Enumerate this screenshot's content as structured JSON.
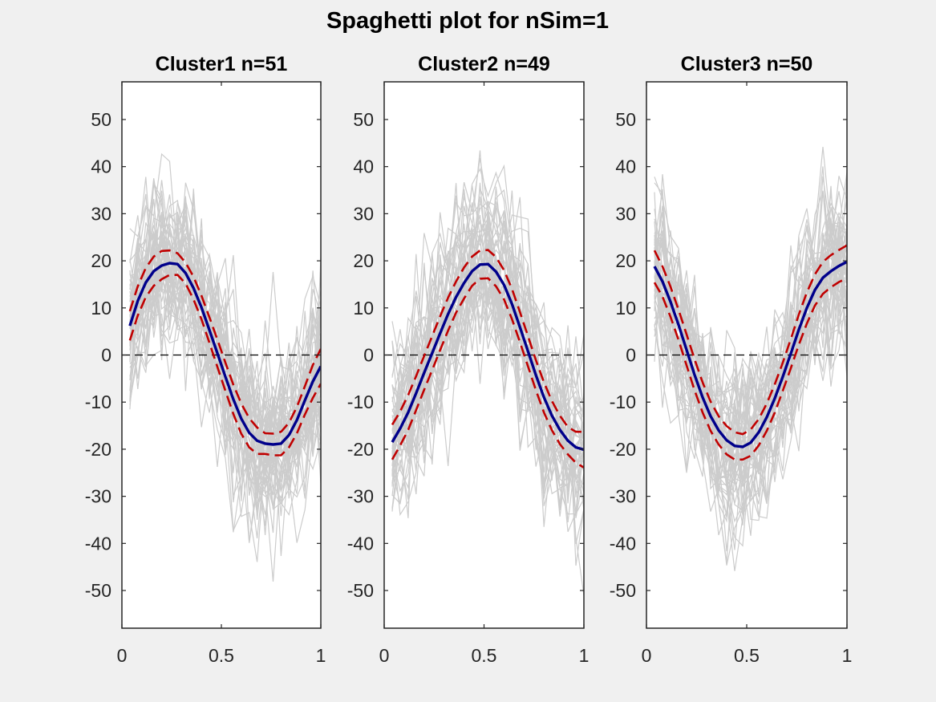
{
  "figure": {
    "title": "Spaghetti plot for nSim=1"
  },
  "chart_data": [
    {
      "type": "line",
      "title": "Cluster1 n=51",
      "xlim": [
        0,
        1
      ],
      "ylim": [
        -58,
        58
      ],
      "xticks": [
        0,
        0.5,
        1
      ],
      "xtick_labels": [
        "0",
        "0.5",
        "1"
      ],
      "yticks": [
        50,
        40,
        30,
        20,
        10,
        0,
        -10,
        -20,
        -30,
        -40,
        -50
      ],
      "ytick_labels": [
        "50",
        "40",
        "30",
        "20",
        "10",
        "0",
        "-10",
        "-20",
        "-30",
        "-40",
        "-50"
      ],
      "grid": false,
      "legend": "none",
      "x": [
        0.04,
        0.08,
        0.12,
        0.16,
        0.2,
        0.24,
        0.28,
        0.32,
        0.36,
        0.4,
        0.44,
        0.48,
        0.52,
        0.56,
        0.6,
        0.64,
        0.68,
        0.72,
        0.76,
        0.8,
        0.84,
        0.88,
        0.92,
        0.96,
        1.0
      ],
      "mean": [
        6.2,
        11.5,
        15.4,
        17.8,
        19.0,
        19.5,
        19.3,
        17.4,
        14.2,
        10.1,
        5.3,
        0.4,
        -4.6,
        -9.4,
        -13.5,
        -16.5,
        -18.2,
        -18.8,
        -19.0,
        -18.8,
        -17.0,
        -13.8,
        -9.6,
        -5.6,
        -2.4
      ],
      "band_upper": [
        9.3,
        14.6,
        18.5,
        20.9,
        22.1,
        22.2,
        21.6,
        19.6,
        16.6,
        12.6,
        8.0,
        3.3,
        -1.6,
        -6.3,
        -10.3,
        -13.4,
        -15.4,
        -16.6,
        -16.7,
        -16.3,
        -14.4,
        -11.0,
        -6.6,
        -2.1,
        1.3
      ],
      "band_lower": [
        3.1,
        8.4,
        12.3,
        14.7,
        16.1,
        17.0,
        17.0,
        15.2,
        11.8,
        7.6,
        2.6,
        -2.5,
        -7.6,
        -12.5,
        -16.7,
        -19.6,
        -21.0,
        -21.0,
        -21.3,
        -21.3,
        -19.6,
        -16.6,
        -12.6,
        -9.1,
        -6.1
      ],
      "zero_line": 0,
      "spaghetti": {
        "count": 51,
        "noise_sd": 8,
        "seed": 11
      },
      "colors": {
        "mean": "#00008b",
        "band": "#c00000",
        "spaghetti": "#cccccc",
        "zero_line": "#000000"
      }
    },
    {
      "type": "line",
      "title": "Cluster2 n=49",
      "xlim": [
        0,
        1
      ],
      "ylim": [
        -58,
        58
      ],
      "xticks": [
        0,
        0.5,
        1
      ],
      "xtick_labels": [
        "0",
        "0.5",
        "1"
      ],
      "yticks": [
        50,
        40,
        30,
        20,
        10,
        0,
        -10,
        -20,
        -30,
        -40,
        -50
      ],
      "ytick_labels": [
        "50",
        "40",
        "30",
        "20",
        "10",
        "0",
        "-10",
        "-20",
        "-30",
        "-40",
        "-50"
      ],
      "grid": false,
      "legend": "none",
      "x": [
        0.04,
        0.08,
        0.12,
        0.16,
        0.2,
        0.24,
        0.28,
        0.32,
        0.36,
        0.4,
        0.44,
        0.48,
        0.52,
        0.56,
        0.6,
        0.64,
        0.68,
        0.72,
        0.76,
        0.8,
        0.84,
        0.88,
        0.92,
        0.96,
        1.0
      ],
      "mean": [
        -18.5,
        -15.6,
        -12.2,
        -8.1,
        -3.8,
        0.4,
        4.6,
        8.7,
        12.3,
        15.3,
        17.8,
        19.2,
        19.3,
        17.7,
        14.9,
        10.8,
        5.9,
        0.8,
        -4.3,
        -9.0,
        -12.9,
        -15.9,
        -18.2,
        -19.6,
        -20.1
      ],
      "band_upper": [
        -14.8,
        -12.0,
        -8.5,
        -4.5,
        -0.2,
        4.0,
        8.2,
        12.2,
        15.6,
        18.6,
        20.9,
        22.2,
        22.3,
        20.8,
        18.0,
        14.0,
        9.1,
        4.0,
        -1.1,
        -5.8,
        -9.8,
        -12.9,
        -15.3,
        -16.3,
        -16.3
      ],
      "band_lower": [
        -22.2,
        -19.2,
        -15.9,
        -11.7,
        -7.4,
        -3.2,
        1.0,
        5.2,
        9.0,
        12.0,
        14.7,
        16.2,
        16.3,
        14.6,
        11.8,
        7.6,
        2.7,
        -2.4,
        -7.5,
        -12.2,
        -16.0,
        -18.9,
        -21.1,
        -22.9,
        -23.9
      ],
      "zero_line": 0,
      "spaghetti": {
        "count": 49,
        "noise_sd": 8,
        "seed": 23
      },
      "colors": {
        "mean": "#00008b",
        "band": "#c00000",
        "spaghetti": "#cccccc",
        "zero_line": "#000000"
      }
    },
    {
      "type": "line",
      "title": "Cluster3 n=50",
      "xlim": [
        0,
        1
      ],
      "ylim": [
        -58,
        58
      ],
      "xticks": [
        0,
        0.5,
        1
      ],
      "xtick_labels": [
        "0",
        "0.5",
        "1"
      ],
      "yticks": [
        50,
        40,
        30,
        20,
        10,
        0,
        -10,
        -20,
        -30,
        -40,
        -50
      ],
      "ytick_labels": [
        "50",
        "40",
        "30",
        "20",
        "10",
        "0",
        "-10",
        "-20",
        "-30",
        "-40",
        "-50"
      ],
      "grid": false,
      "legend": "none",
      "x": [
        0.04,
        0.08,
        0.12,
        0.16,
        0.2,
        0.24,
        0.28,
        0.32,
        0.36,
        0.4,
        0.44,
        0.48,
        0.52,
        0.56,
        0.6,
        0.64,
        0.68,
        0.72,
        0.76,
        0.8,
        0.84,
        0.88,
        0.92,
        0.96,
        1.0
      ],
      "mean": [
        18.8,
        15.6,
        11.3,
        6.4,
        1.1,
        -4.2,
        -9.0,
        -13.0,
        -16.0,
        -18.1,
        -19.3,
        -19.5,
        -18.6,
        -16.4,
        -13.2,
        -9.2,
        -4.6,
        0.3,
        5.4,
        10.0,
        13.8,
        16.4,
        17.8,
        18.9,
        19.8
      ],
      "band_upper": [
        22.2,
        18.8,
        14.5,
        9.6,
        4.4,
        -0.9,
        -5.8,
        -9.9,
        -13.0,
        -15.1,
        -16.4,
        -16.8,
        -15.8,
        -13.6,
        -10.3,
        -6.2,
        -1.6,
        3.4,
        8.6,
        13.3,
        17.1,
        19.8,
        21.2,
        22.3,
        23.3
      ],
      "band_lower": [
        15.4,
        12.4,
        8.1,
        3.2,
        -2.2,
        -7.5,
        -12.2,
        -16.1,
        -19.0,
        -21.1,
        -22.2,
        -22.2,
        -21.4,
        -19.2,
        -16.1,
        -12.2,
        -7.6,
        -2.8,
        2.2,
        6.7,
        10.5,
        13.0,
        14.4,
        15.5,
        16.3
      ],
      "zero_line": 0,
      "spaghetti": {
        "count": 50,
        "noise_sd": 8,
        "seed": 37
      },
      "colors": {
        "mean": "#00008b",
        "band": "#c00000",
        "spaghetti": "#cccccc",
        "zero_line": "#000000"
      }
    }
  ]
}
